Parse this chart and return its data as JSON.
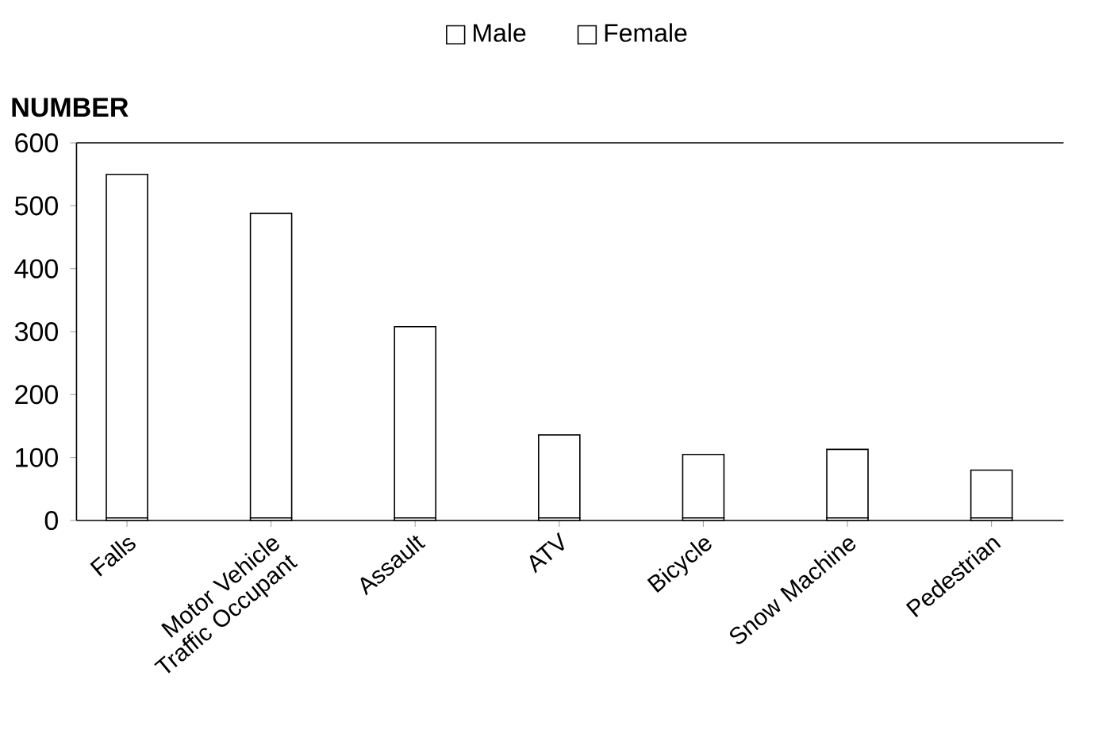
{
  "chart_data": {
    "type": "bar",
    "stacked": true,
    "ylabel": "NUMBER",
    "categories": [
      "Falls",
      "Motor Vehicle Traffic Occupant",
      "Assault",
      "ATV",
      "Bicycle",
      "Snow Machine",
      "Pedestrian"
    ],
    "series": [
      {
        "name": "Male",
        "color": "#ffffff",
        "values": [
          4,
          4,
          4,
          4,
          4,
          4,
          4
        ]
      },
      {
        "name": "Female",
        "color": "#ffffff",
        "values": [
          546,
          484,
          304,
          132,
          101,
          109,
          76
        ]
      }
    ],
    "ylim": [
      0,
      600
    ],
    "yticks": [
      0,
      100,
      200,
      300,
      400,
      500,
      600
    ],
    "grid": false,
    "legend": "top"
  }
}
